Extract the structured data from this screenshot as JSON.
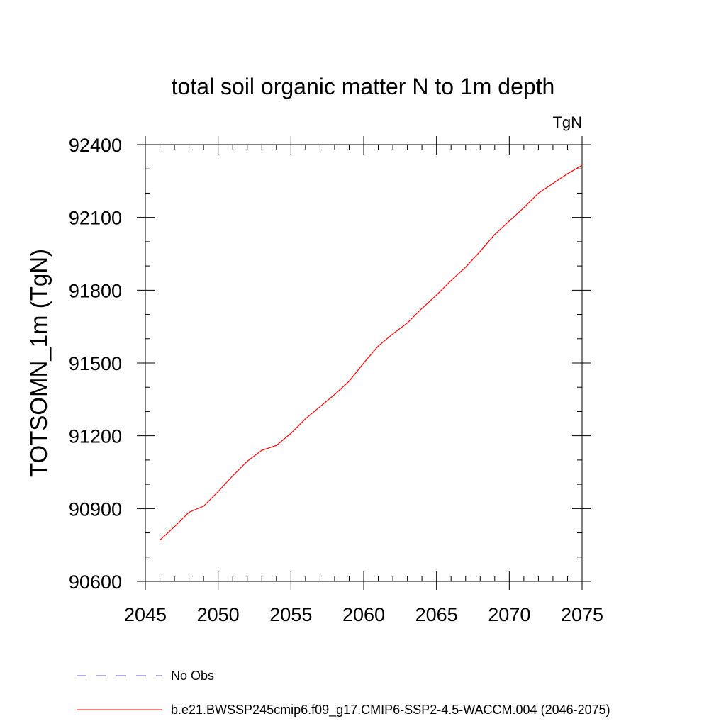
{
  "chart_data": {
    "type": "line",
    "title": "total soil organic matter N to 1m depth",
    "units_label": "TgN",
    "ylabel": "TOTSOMN_1m  (TgN)",
    "xlabel": "",
    "xlim": [
      2045,
      2075
    ],
    "ylim": [
      90600,
      92400
    ],
    "x_ticks": [
      2045,
      2050,
      2055,
      2060,
      2065,
      2070,
      2075
    ],
    "y_ticks": [
      90600,
      90900,
      91200,
      91500,
      91800,
      92100,
      92400
    ],
    "x_minor_step": 1,
    "y_minor_step": 100,
    "grid": false,
    "series": [
      {
        "name": "b.e21.BWSSP245cmip6.f09_g17.CMIP6-SSP2-4.5-WACCM.004 (2046-2075)",
        "color": "#ff0000",
        "dash": "solid",
        "x": [
          2046,
          2047,
          2048,
          2049,
          2050,
          2051,
          2052,
          2053,
          2054,
          2055,
          2056,
          2057,
          2058,
          2059,
          2060,
          2061,
          2062,
          2063,
          2064,
          2065,
          2066,
          2067,
          2068,
          2069,
          2070,
          2071,
          2072,
          2073,
          2074,
          2075
        ],
        "values": [
          90770,
          90825,
          90885,
          90910,
          90970,
          91035,
          91095,
          91140,
          91160,
          91210,
          91270,
          91320,
          91370,
          91425,
          91500,
          91570,
          91620,
          91665,
          91725,
          91780,
          91840,
          91895,
          91960,
          92030,
          92085,
          92140,
          92200,
          92240,
          92280,
          92315
        ]
      }
    ],
    "legend": {
      "placement": "bottom",
      "entries": [
        {
          "label": "No Obs",
          "color": "#6a5acd",
          "dash": "dashed"
        },
        {
          "label": "b.e21.BWSSP245cmip6.f09_g17.CMIP6-SSP2-4.5-WACCM.004 (2046-2075)",
          "color": "#ff0000",
          "dash": "solid"
        }
      ]
    }
  }
}
